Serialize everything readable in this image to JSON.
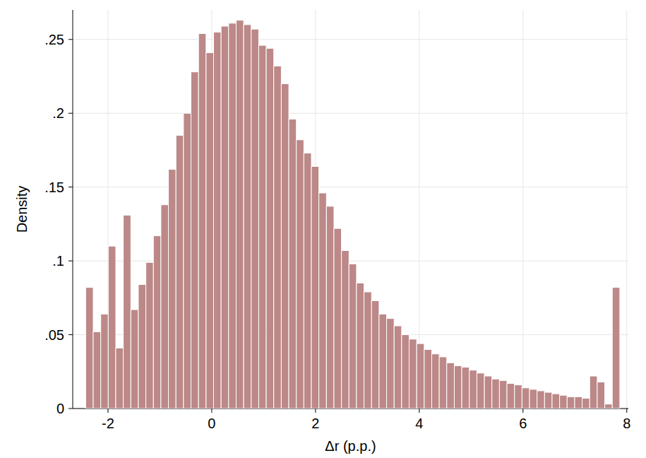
{
  "chart_data": {
    "type": "histogram",
    "x_label": "Δr (p.p.)",
    "y_label": "Density",
    "color": "#bc8888",
    "grid": true,
    "bins": [
      -2.43,
      -2.285,
      -2.14,
      -1.995,
      -1.85,
      -1.705,
      -1.56,
      -1.415,
      -1.27,
      -1.125,
      -0.98,
      -0.835,
      -0.69,
      -0.545,
      -0.4,
      -0.255,
      -0.11,
      0.035,
      0.18,
      0.325,
      0.47,
      0.615,
      0.76,
      0.905,
      1.05,
      1.195,
      1.34,
      1.485,
      1.63,
      1.775,
      1.92,
      2.065,
      2.21,
      2.355,
      2.5,
      2.645,
      2.79,
      2.935,
      3.08,
      3.225,
      3.37,
      3.515,
      3.66,
      3.805,
      3.95,
      4.095,
      4.24,
      4.385,
      4.53,
      4.675,
      4.82,
      4.965,
      5.11,
      5.255,
      5.4,
      5.545,
      5.69,
      5.835,
      5.98,
      6.125,
      6.27,
      6.415,
      6.56,
      6.705,
      6.85,
      6.995,
      7.14,
      7.285,
      7.43,
      7.575,
      7.72,
      7.865
    ],
    "values": [
      0.082,
      0.052,
      0.064,
      0.11,
      0.041,
      0.131,
      0.067,
      0.084,
      0.099,
      0.117,
      0.138,
      0.162,
      0.185,
      0.2,
      0.228,
      0.254,
      0.241,
      0.255,
      0.259,
      0.261,
      0.263,
      0.26,
      0.257,
      0.246,
      0.244,
      0.232,
      0.22,
      0.196,
      0.182,
      0.173,
      0.164,
      0.146,
      0.137,
      0.122,
      0.107,
      0.098,
      0.085,
      0.079,
      0.073,
      0.064,
      0.061,
      0.056,
      0.05,
      0.047,
      0.044,
      0.04,
      0.037,
      0.035,
      0.031,
      0.029,
      0.028,
      0.026,
      0.024,
      0.022,
      0.02,
      0.019,
      0.017,
      0.016,
      0.014,
      0.013,
      0.012,
      0.011,
      0.01,
      0.009,
      0.008,
      0.008,
      0.007,
      0.022,
      0.018,
      0.003,
      0.082
    ],
    "xlim": [
      -2.68,
      8.03
    ],
    "ylim": [
      0,
      0.27
    ],
    "xticks": [
      -2,
      0,
      2,
      4,
      6,
      8
    ],
    "yticks": [
      0,
      {
        "value": 0.05,
        "label": ".05"
      },
      {
        "value": 0.1,
        "label": ".1"
      },
      {
        "value": 0.15,
        "label": ".15"
      },
      {
        "value": 0.2,
        "label": ".2"
      },
      {
        "value": 0.25,
        "label": ".25"
      }
    ]
  }
}
